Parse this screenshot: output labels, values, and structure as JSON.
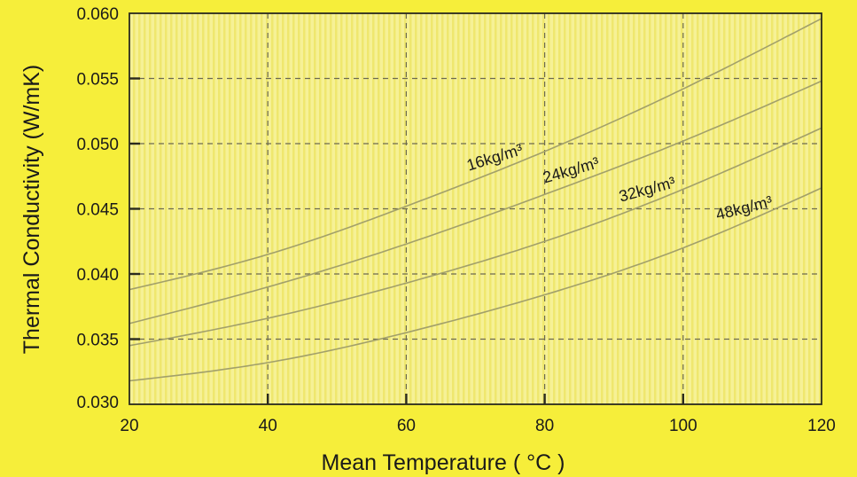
{
  "colors": {
    "background": "#f6ee3a",
    "plot_background": "#f5f08c",
    "plot_stripe": "#f2ea78",
    "curve": "#a2a06a",
    "grid": "#6c6a50",
    "text": "#1a1a1a"
  },
  "chart_data": {
    "type": "line",
    "title": "",
    "xlabel": "Mean Temperature ( °C )",
    "ylabel": "Thermal Conductivity (W/mK)",
    "xlim": [
      20,
      120
    ],
    "ylim": [
      0.03,
      0.06
    ],
    "xticks": [
      20,
      40,
      60,
      80,
      100,
      120
    ],
    "xtick_labels": [
      "20",
      "40",
      "60",
      "80",
      "100",
      "120"
    ],
    "yticks": [
      0.03,
      0.035,
      0.04,
      0.045,
      0.05,
      0.055,
      0.06
    ],
    "ytick_labels": [
      "0.030",
      "0.035",
      "0.040",
      "0.045",
      "0.050",
      "0.055",
      "0.060"
    ],
    "grid": true,
    "legend": "inline labels on curves",
    "x": [
      20,
      40,
      60,
      80,
      100,
      120
    ],
    "series": [
      {
        "name": "16kg/m³",
        "values": [
          0.0388,
          0.0415,
          0.0452,
          0.0494,
          0.0542,
          0.0596
        ]
      },
      {
        "name": "24kg/m³",
        "values": [
          0.0362,
          0.039,
          0.0423,
          0.0461,
          0.0502,
          0.0548
        ]
      },
      {
        "name": "32kg/m³",
        "values": [
          0.0345,
          0.0366,
          0.0393,
          0.0425,
          0.0465,
          0.0512
        ]
      },
      {
        "name": "48kg/m³",
        "values": [
          0.0318,
          0.0332,
          0.0355,
          0.0384,
          0.042,
          0.0466
        ]
      }
    ]
  }
}
